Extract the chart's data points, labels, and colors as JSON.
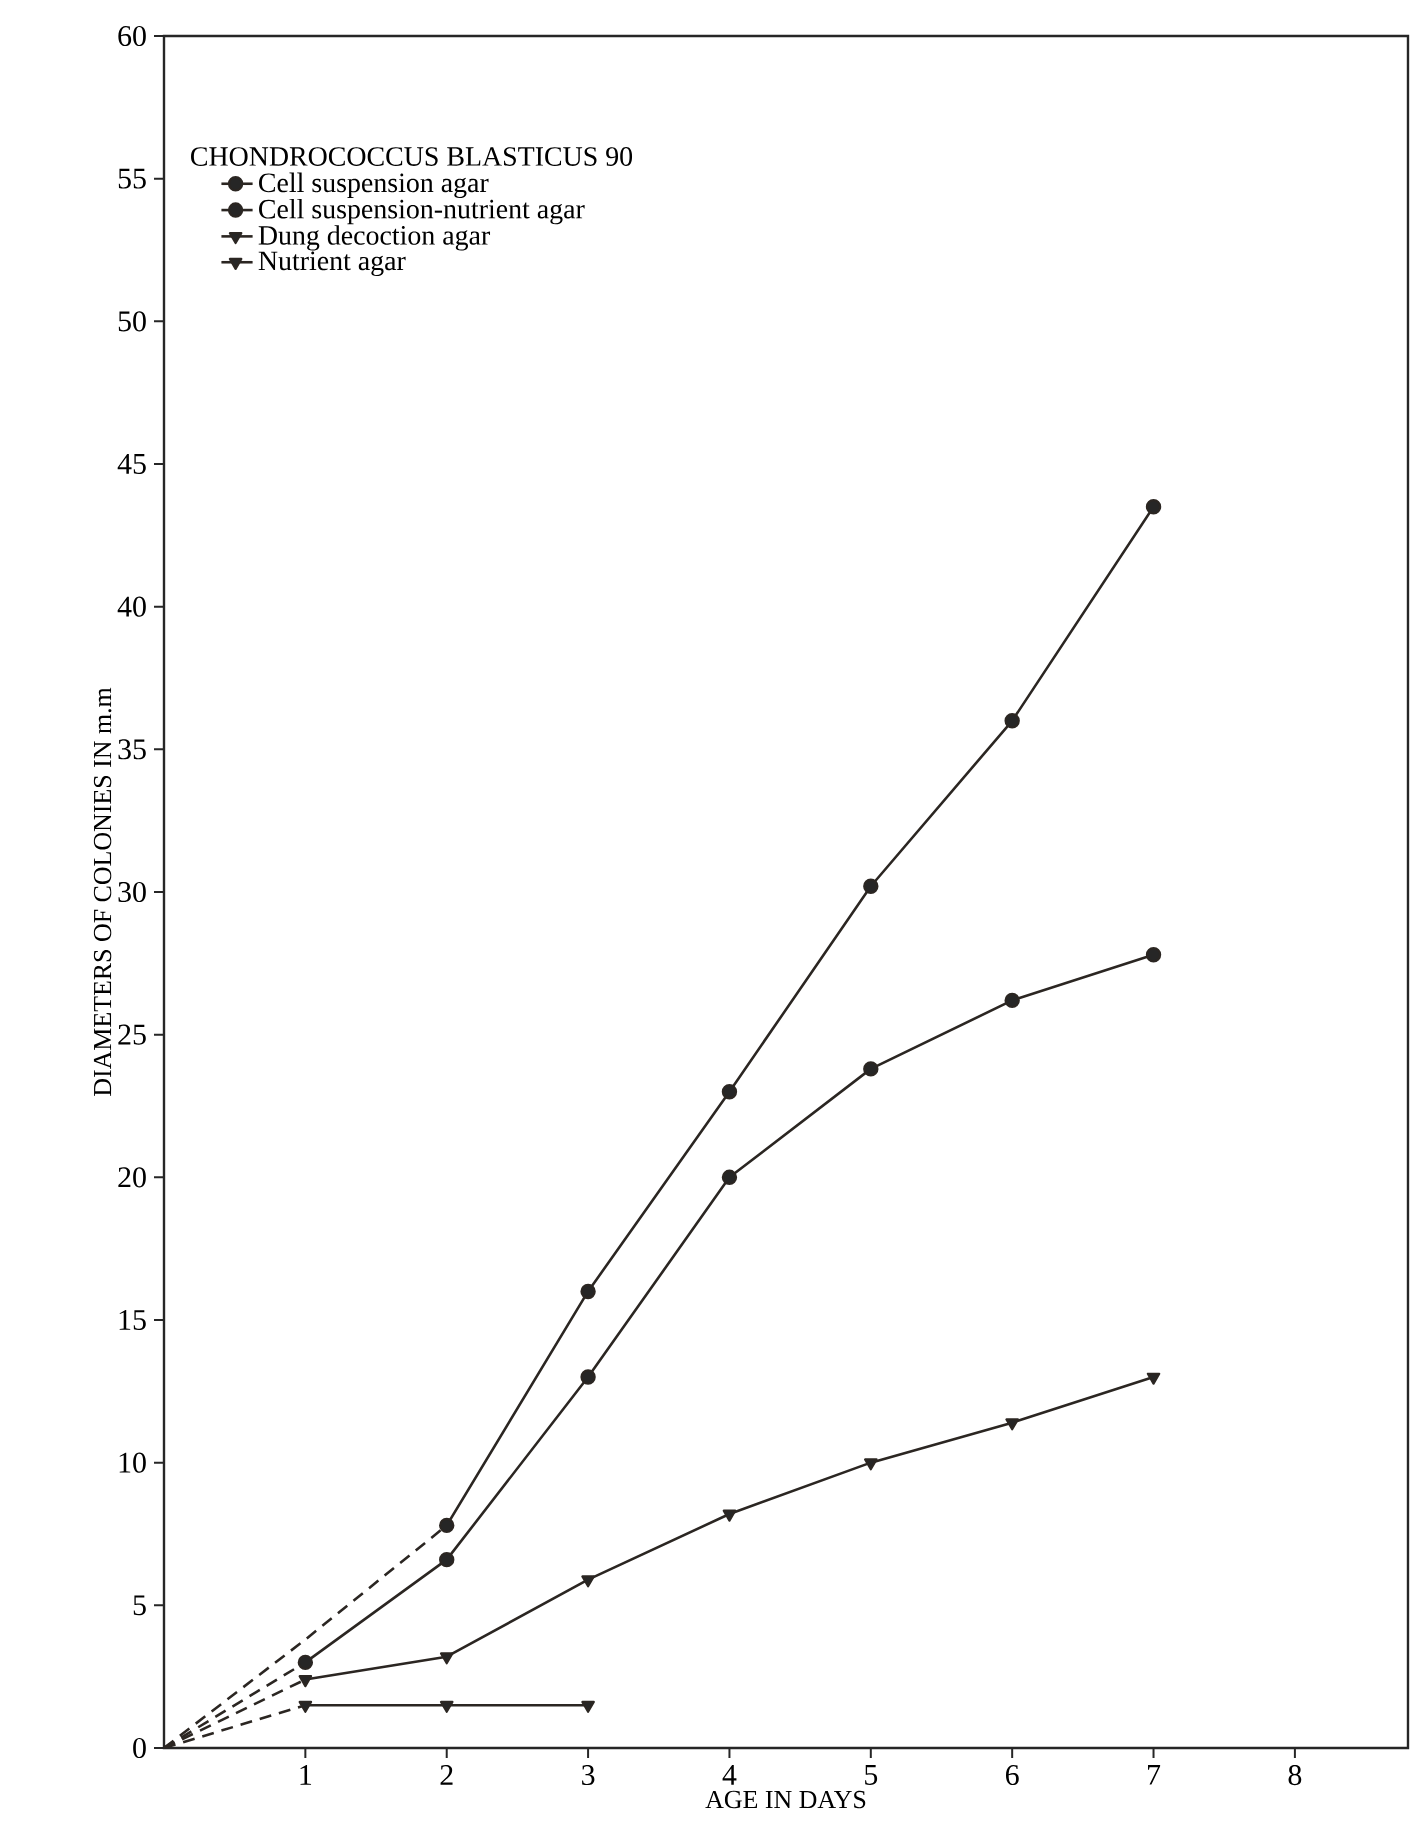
{
  "chart_data": {
    "type": "line",
    "legend_title": "CHONDROCOCCUS BLASTICUS 90",
    "xlabel": "AGE IN DAYS",
    "ylabel": "DIAMETERS OF COLONIES IN m.m",
    "xlim": [
      0,
      8.8
    ],
    "xticks": [
      1,
      2,
      3,
      4,
      5,
      6,
      7,
      8
    ],
    "ylim": [
      0,
      60
    ],
    "yticks": [
      0,
      5,
      10,
      15,
      20,
      25,
      30,
      35,
      40,
      45,
      50,
      55,
      60
    ],
    "grid": false,
    "legend": "top left",
    "line_style": "solid",
    "series": [
      {
        "name": "Cell suspension agar",
        "color": "#2b2622",
        "marker": "circle",
        "x": [
          2,
          3,
          4,
          5,
          6,
          7
        ],
        "values": [
          7.8,
          16,
          23,
          30.2,
          36,
          43.5
        ]
      },
      {
        "name": "Cell suspension-nutrient agar",
        "color": "#2b2622",
        "marker": "circle",
        "x": [
          1,
          2,
          3,
          4,
          5,
          6,
          7
        ],
        "values": [
          3.0,
          6.6,
          13,
          20,
          23.8,
          26.2,
          27.8
        ]
      },
      {
        "name": "Dung decoction agar",
        "color": "#2b2622",
        "marker": "triangle",
        "x": [
          1,
          2,
          3
        ],
        "values": [
          1.5,
          1.5,
          1.5
        ]
      },
      {
        "name": "Nutrient agar",
        "color": "#2b2622",
        "marker": "triangle",
        "x": [
          1,
          2,
          3,
          4,
          5,
          6,
          7
        ],
        "values": [
          2.4,
          3.2,
          5.9,
          8.2,
          10,
          11.4,
          13
        ]
      },
      {
        "color": "#2b2622",
        "marker": "none",
        "line_style": "dashed",
        "x": [
          0,
          1,
          2
        ],
        "values": [
          0,
          3.8,
          7.8
        ]
      },
      {
        "color": "#2b2622",
        "marker": "none",
        "line_style": "dashed",
        "x": [
          0,
          1
        ],
        "values": [
          0,
          3.0
        ]
      },
      {
        "color": "#2b2622",
        "marker": "none",
        "line_style": "dashed",
        "x": [
          0,
          1
        ],
        "values": [
          0,
          1.5
        ]
      },
      {
        "color": "#2b2622",
        "marker": "none",
        "line_style": "dashed",
        "x": [
          0,
          1
        ],
        "values": [
          0,
          2.4
        ]
      }
    ]
  }
}
